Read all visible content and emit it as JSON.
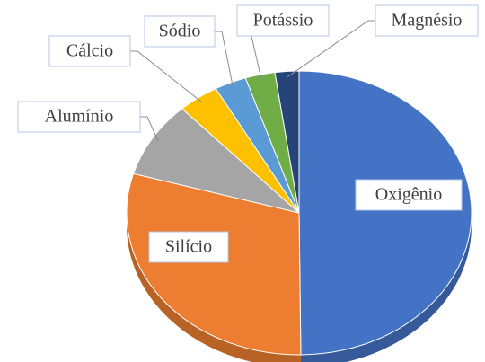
{
  "chart_data": {
    "type": "pie",
    "categories": [
      "Oxigênio",
      "Silício",
      "Alumínio",
      "Cálcio",
      "Sódio",
      "Potássio",
      "Magnésio"
    ],
    "values": [
      46.6,
      27.7,
      8.1,
      3.6,
      2.8,
      2.6,
      2.1
    ],
    "colors": [
      "#4472c4",
      "#ed7d31",
      "#a5a5a5",
      "#ffc000",
      "#5b9bd5",
      "#70ad47",
      "#264478"
    ]
  }
}
